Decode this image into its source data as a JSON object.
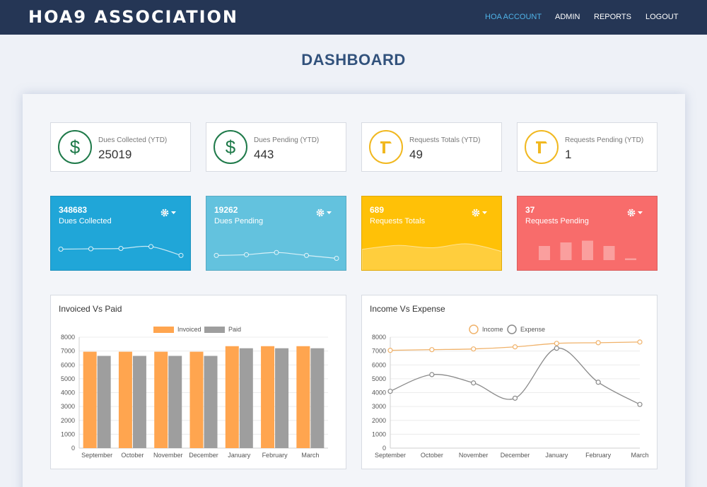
{
  "header": {
    "brand": "HOA9 ASSOCIATION",
    "nav": [
      {
        "label": "HOA ACCOUNT",
        "active": true
      },
      {
        "label": "ADMIN"
      },
      {
        "label": "REPORTS"
      },
      {
        "label": "LOGOUT"
      }
    ]
  },
  "page_title": "DASHBOARD",
  "stats": [
    {
      "label": "Dues Collected (YTD)",
      "value": "25019",
      "icon": "dollar-icon",
      "color": "#1f7a4a"
    },
    {
      "label": "Dues Pending (YTD)",
      "value": "443",
      "icon": "dollar-icon",
      "color": "#1f7a4a"
    },
    {
      "label": "Requests Totals (YTD)",
      "value": "49",
      "icon": "hammer-icon",
      "color": "#f1b820"
    },
    {
      "label": "Requests Pending (YTD)",
      "value": "1",
      "icon": "hammer-icon",
      "color": "#f1b820"
    }
  ],
  "color_cards": [
    {
      "value": "348683",
      "label": "Dues Collected",
      "color": "#20a6d8",
      "icon": "gear-icon",
      "spark": "line",
      "trend": [
        4.9,
        5.0,
        5.1,
        5.6,
        3.2
      ]
    },
    {
      "value": "19262",
      "label": "Dues Pending",
      "color": "#63c2de",
      "icon": "gear-icon",
      "spark": "line",
      "trend": [
        3.2,
        3.4,
        4.0,
        3.2,
        2.4
      ]
    },
    {
      "value": "689",
      "label": "Requests Totals",
      "color": "#ffc107",
      "icon": "gear-icon",
      "spark": "area",
      "trend": [
        4.6,
        5.6,
        5.0,
        6.0,
        4.0
      ]
    },
    {
      "value": "37",
      "label": "Requests Pending",
      "color": "#f86c6b",
      "icon": "gear-icon",
      "spark": "bars",
      "trend": [
        4,
        5,
        5.5,
        4,
        0.5
      ]
    }
  ],
  "chart_data": [
    {
      "type": "bar",
      "title": "Invoiced Vs Paid",
      "categories": [
        "September",
        "October",
        "November",
        "December",
        "January",
        "February",
        "March"
      ],
      "series": [
        {
          "name": "Invoiced",
          "color": "#ffa54f",
          "values": [
            6950,
            6950,
            6950,
            6950,
            7350,
            7350,
            7350
          ]
        },
        {
          "name": "Paid",
          "color": "#9e9e9e",
          "values": [
            6650,
            6650,
            6650,
            6650,
            7200,
            7200,
            7200
          ]
        }
      ],
      "yticks": [
        0,
        1000,
        2000,
        3000,
        4000,
        5000,
        6000,
        7000,
        8000
      ],
      "ylim": [
        0,
        8000
      ],
      "legend": "top-center",
      "grid": true
    },
    {
      "type": "line",
      "title": "Income Vs Expense",
      "categories": [
        "September",
        "October",
        "November",
        "December",
        "January",
        "February",
        "March"
      ],
      "series": [
        {
          "name": "Income",
          "color": "#f0b26a",
          "values": [
            7050,
            7100,
            7150,
            7300,
            7550,
            7600,
            7650
          ]
        },
        {
          "name": "Expense",
          "color": "#8a8a8a",
          "values": [
            4100,
            5300,
            4700,
            3600,
            7200,
            4750,
            3150
          ]
        }
      ],
      "yticks": [
        0,
        1000,
        2000,
        3000,
        4000,
        5000,
        6000,
        7000,
        8000
      ],
      "ylim": [
        0,
        8000
      ],
      "legend": "top-center",
      "grid": true
    }
  ]
}
